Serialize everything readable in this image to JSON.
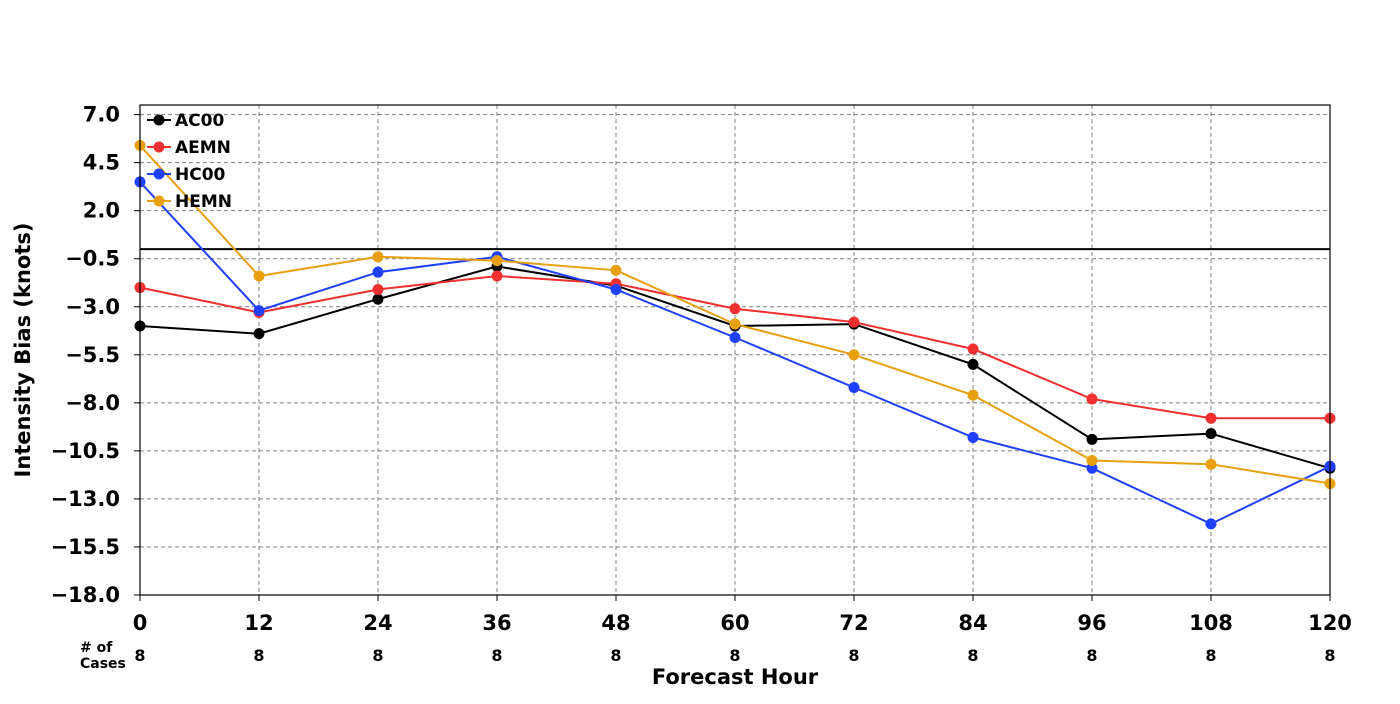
{
  "chart_data": {
    "type": "line",
    "title": "",
    "xlabel": "Forecast Hour",
    "ylabel": "Intensity Bias (knots)",
    "x": [
      0,
      12,
      24,
      36,
      48,
      60,
      72,
      84,
      96,
      108,
      120
    ],
    "x_tick_labels": [
      "0",
      "12",
      "24",
      "36",
      "48",
      "60",
      "72",
      "84",
      "96",
      "108",
      "120"
    ],
    "xlim": [
      0,
      120
    ],
    "ylim": [
      -18.0,
      7.5
    ],
    "y_ticks": [
      7.0,
      4.5,
      2.0,
      -0.5,
      -3.0,
      -5.5,
      -8.0,
      -10.5,
      -13.0,
      -15.5,
      -18.0
    ],
    "y_tick_labels": [
      "7.0",
      "4.5",
      "2.0",
      "−0.5",
      "−3.0",
      "−5.5",
      "−8.0",
      "−10.5",
      "−13.0",
      "−15.5",
      "−18.0"
    ],
    "reference_line_y": 0,
    "grid": true,
    "legend_position": "top-left",
    "series": [
      {
        "name": "AC00",
        "color": "#000000",
        "values": [
          -4.0,
          -4.4,
          -2.6,
          -0.9,
          -1.9,
          -4.0,
          -3.9,
          -6.0,
          -9.9,
          -9.6,
          -11.4
        ]
      },
      {
        "name": "AEMN",
        "color": "#f03030",
        "values": [
          -2.0,
          -3.3,
          -2.1,
          -1.4,
          -1.8,
          -3.1,
          -3.8,
          -5.2,
          -7.8,
          -8.8,
          -8.8
        ]
      },
      {
        "name": "HC00",
        "color": "#2040ff",
        "values": [
          3.5,
          -3.2,
          -1.2,
          -0.4,
          -2.1,
          -4.6,
          -7.2,
          -9.8,
          -11.4,
          -14.3,
          -11.3
        ]
      },
      {
        "name": "HEMN",
        "color": "#e8a010",
        "values": [
          5.4,
          -1.4,
          -0.4,
          -0.6,
          -1.1,
          -3.9,
          -5.5,
          -7.6,
          -11.0,
          -11.2,
          -12.2
        ]
      }
    ],
    "cases_header": "# of\nCases",
    "cases": [
      "8",
      "8",
      "8",
      "8",
      "8",
      "8",
      "8",
      "8",
      "8",
      "8",
      "8"
    ]
  }
}
